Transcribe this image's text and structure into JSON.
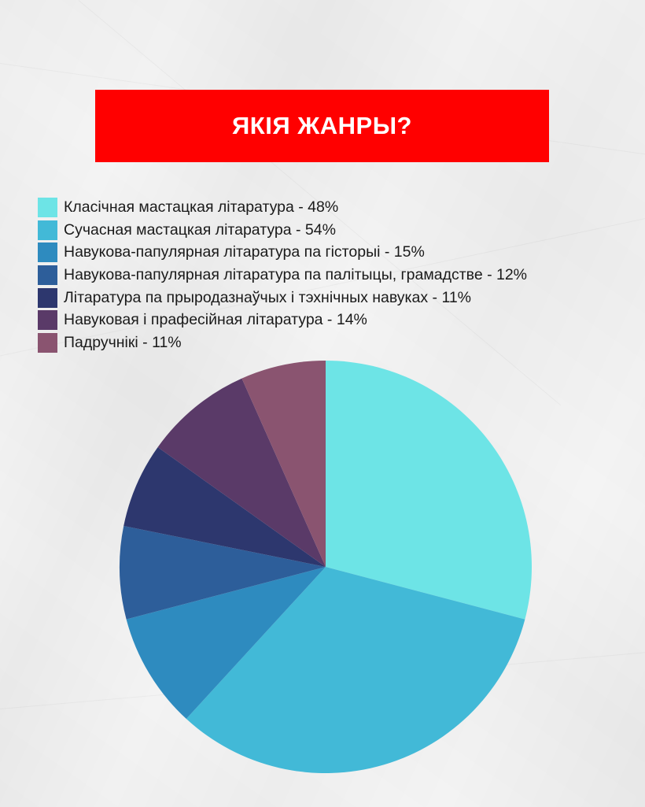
{
  "title": "ЯКІЯ ЖАНРЫ?",
  "colors": {
    "banner": "#ff0000",
    "text": "#1a1a1a",
    "background": "#f4f4f4"
  },
  "chart_data": {
    "type": "pie",
    "title": "ЯКІЯ ЖАНРЫ?",
    "legend_position": "top-left",
    "start": "top",
    "direction": "clockwise",
    "slices": [
      {
        "label": "Класічная мастацкая літаратура - 48%",
        "value": 48,
        "color": "#6de4e6"
      },
      {
        "label": "Сучасная мастацкая літаратура - 54%",
        "value": 54,
        "color": "#42b9d7"
      },
      {
        "label": "Навукова-папулярная літаратура па гісторыі - 15%",
        "value": 15,
        "color": "#2e8bbf"
      },
      {
        "label": "Навукова-папулярная літаратура па палітыцы, грамадстве - 12%",
        "value": 12,
        "color": "#2d5e9a"
      },
      {
        "label": "Літаратура па прыродазнаўчых і тэхнічных навуках - 11%",
        "value": 11,
        "color": "#2d376e"
      },
      {
        "label": "Навуковая і прафесійная літаратура - 14%",
        "value": 14,
        "color": "#5a3a68"
      },
      {
        "label": "Падручнікі - 11%",
        "value": 11,
        "color": "#8a5470"
      }
    ]
  }
}
